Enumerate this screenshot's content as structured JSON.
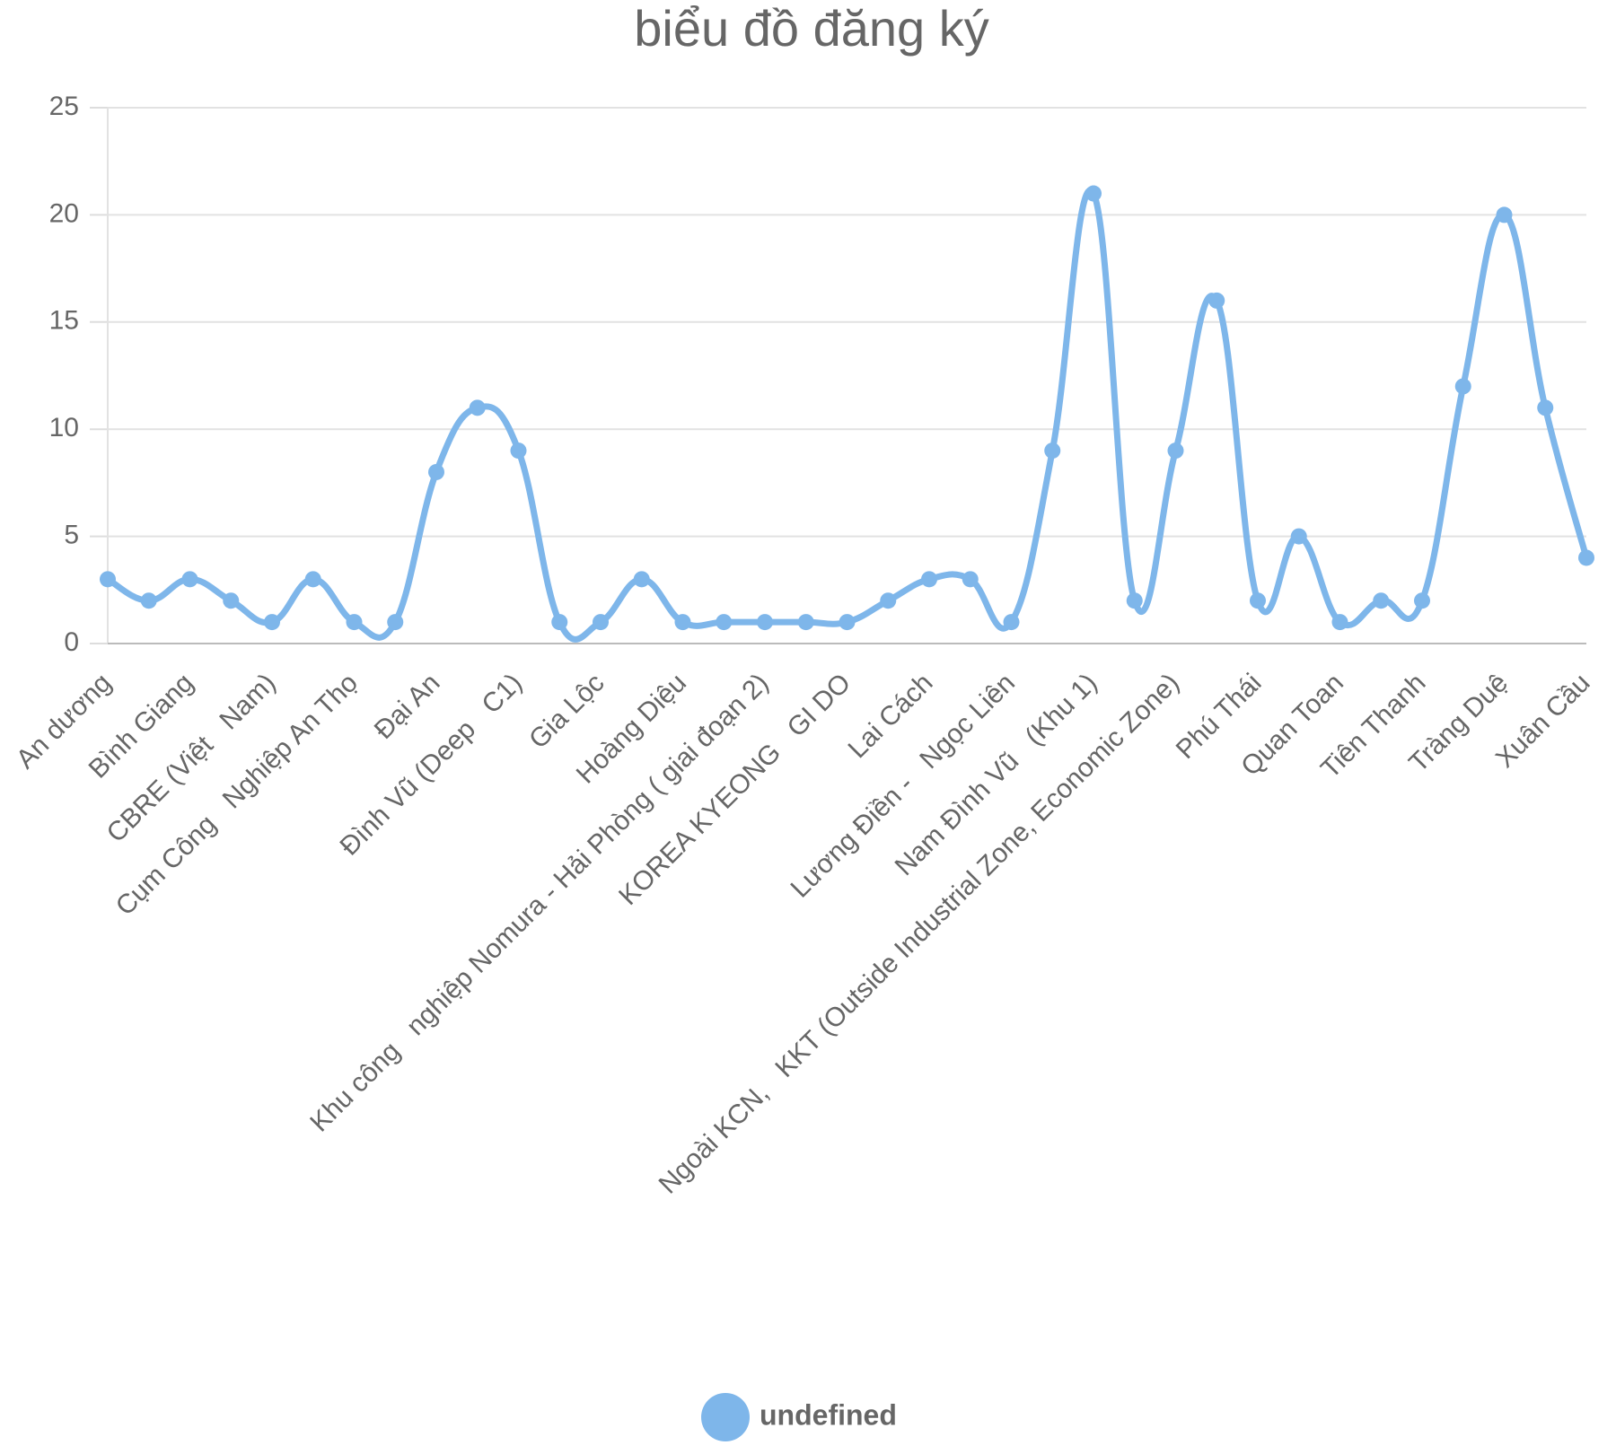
{
  "chart_data": {
    "type": "line",
    "title": "biểu đồ đăng ký",
    "categories": [
      "An dương",
      null,
      "Bình Giang",
      null,
      "CBRE (Việt   Nam)",
      null,
      "Cụm Công   Nghiệp An Thọ",
      null,
      "Đại An",
      null,
      "Đình Vũ (Deep   C1)",
      null,
      "Gia Lộc",
      null,
      "Hoàng Diệu",
      null,
      "Khu công   nghiệp Nomura - Hải Phòng ( giai đoạn 2)",
      null,
      "KOREA KYEONG   GI DO",
      null,
      "Lai Cách",
      null,
      "Lương Điền -   Ngọc Liên",
      null,
      "Nam Đình Vũ   (Khu 1)",
      null,
      "Ngoài KCN,   KKT (Outside Industrial Zone, Economic Zone)",
      null,
      "Phú Thái",
      null,
      "Quan Toan",
      null,
      "Tiên Thanh",
      null,
      "Tràng Duệ",
      null,
      "Xuân Cầu"
    ],
    "series": [
      {
        "name": "undefined",
        "color": "#7eb6ea",
        "values": [
          3,
          2,
          3,
          2,
          1,
          3,
          1,
          1,
          8,
          11,
          9,
          1,
          1,
          3,
          1,
          1,
          1,
          1,
          1,
          2,
          3,
          3,
          1,
          9,
          21,
          2,
          9,
          16,
          2,
          5,
          1,
          2,
          2,
          12,
          20,
          11,
          4
        ]
      }
    ],
    "ylim": [
      0,
      25
    ],
    "yticks": [
      0,
      5,
      10,
      15,
      20,
      25
    ],
    "grid": true,
    "legend": "bottom"
  }
}
